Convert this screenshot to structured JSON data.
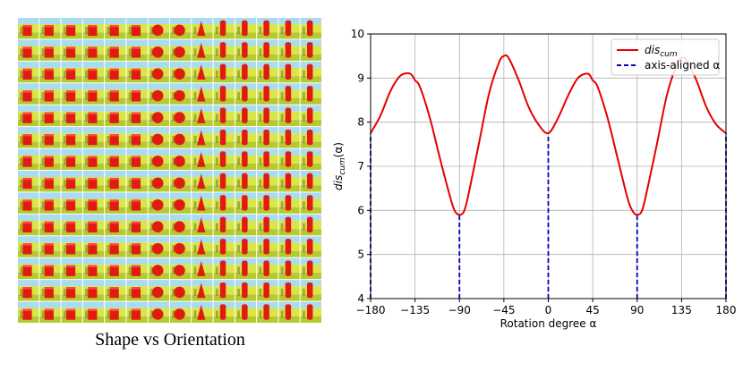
{
  "left_panel": {
    "caption": "Shape vs Orientation",
    "rows": 14,
    "cols": 14,
    "shape_sequence": [
      "cube",
      "cube",
      "cube",
      "cube",
      "cube",
      "cube",
      "sphere",
      "sphere",
      "cone",
      "cylinder",
      "cylinder",
      "cylinder",
      "cylinder",
      "cylinder"
    ]
  },
  "colors": {
    "sky": "#a8dcee",
    "wall": "#d9e64a",
    "floor": "#b6c92e",
    "object": "#e21b12",
    "line": "#e60000",
    "dashed": "#0000cc"
  },
  "chart_data": {
    "type": "line",
    "xlabel": "Rotation degree α",
    "ylabel": "dis_cum(α)",
    "ylim": [
      4,
      10
    ],
    "xlim": [
      -180,
      180
    ],
    "xticks": [
      -180,
      -135,
      -90,
      -45,
      0,
      45,
      90,
      135,
      180
    ],
    "yticks": [
      4,
      5,
      6,
      7,
      8,
      9,
      10
    ],
    "xtick_labels": [
      "−180",
      "−135",
      "−90",
      "−45",
      "0",
      "45",
      "90",
      "135",
      "180"
    ],
    "ytick_labels": [
      "4",
      "5",
      "6",
      "7",
      "8",
      "9",
      "10"
    ],
    "grid": true,
    "legend": {
      "position": "top-right",
      "entries": [
        {
          "label": "dis",
          "subscript": "cum",
          "style": "solid"
        },
        {
          "label": "axis-aligned α",
          "style": "dashed"
        }
      ]
    },
    "series": [
      {
        "name": "dis_cum",
        "x": [
          -180,
          -170,
          -160,
          -150,
          -140,
          -135,
          -130,
          -120,
          -110,
          -100,
          -95,
          -90,
          -85,
          -80,
          -70,
          -60,
          -50,
          -45,
          -40,
          -30,
          -20,
          -10,
          0,
          10,
          20,
          30,
          40,
          45,
          50,
          60,
          70,
          80,
          85,
          90,
          95,
          100,
          110,
          120,
          130,
          135,
          140,
          150,
          160,
          170,
          180
        ],
        "y": [
          7.75,
          8.15,
          8.7,
          9.05,
          9.1,
          8.95,
          8.8,
          8.1,
          7.2,
          6.35,
          6.0,
          5.9,
          6.0,
          6.45,
          7.55,
          8.65,
          9.35,
          9.5,
          9.45,
          8.95,
          8.35,
          7.95,
          7.75,
          8.1,
          8.6,
          9.0,
          9.1,
          8.95,
          8.8,
          8.1,
          7.2,
          6.3,
          6.0,
          5.9,
          6.0,
          6.45,
          7.5,
          8.6,
          9.3,
          9.45,
          9.4,
          8.95,
          8.35,
          7.95,
          7.75
        ]
      }
    ],
    "axis_aligned": [
      {
        "x": -180,
        "y": 7.75
      },
      {
        "x": -90,
        "y": 5.9
      },
      {
        "x": 0,
        "y": 7.75
      },
      {
        "x": 90,
        "y": 5.9
      },
      {
        "x": 180,
        "y": 7.75
      }
    ]
  }
}
